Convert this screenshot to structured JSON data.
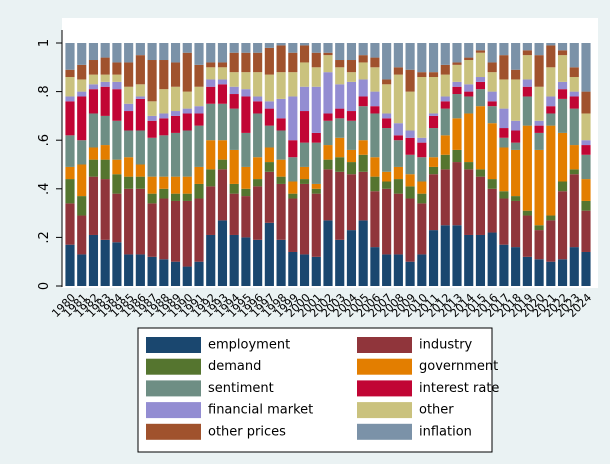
{
  "chart_data": {
    "type": "stacked_bar",
    "categories": [
      "1980",
      "1981",
      "1982",
      "1983",
      "1984",
      "1985",
      "1986",
      "1987",
      "1988",
      "1989",
      "1990",
      "1991",
      "1992",
      "1993",
      "1994",
      "1995",
      "1996",
      "1997",
      "1998",
      "1999",
      "2000",
      "2001",
      "2002",
      "2003",
      "2004",
      "2005",
      "2006",
      "2007",
      "2008",
      "2009",
      "2010",
      "2011",
      "2012",
      "2013",
      "2014",
      "2015",
      "2016",
      "2017",
      "2018",
      "2019",
      "2020",
      "2021",
      "2022",
      "2023",
      "2024"
    ],
    "ylim": [
      0,
      1
    ],
    "yticks": [
      0,
      {
        "value": 0.2,
        "label": ".2"
      },
      {
        "value": 0.4,
        "label": ".4"
      },
      {
        "value": 0.6,
        "label": ".6"
      },
      {
        "value": 0.8,
        "label": ".8"
      },
      1
    ],
    "series": [
      {
        "name": "employment",
        "color": "#1a476f",
        "values": [
          0.17,
          0.13,
          0.21,
          0.19,
          0.18,
          0.13,
          0.13,
          0.12,
          0.11,
          0.1,
          0.08,
          0.1,
          0.21,
          0.27,
          0.21,
          0.2,
          0.19,
          0.26,
          0.19,
          0.14,
          0.13,
          0.12,
          0.27,
          0.19,
          0.23,
          0.27,
          0.16,
          0.13,
          0.13,
          0.1,
          0.13,
          0.23,
          0.25,
          0.25,
          0.21,
          0.21,
          0.22,
          0.17,
          0.16,
          0.12,
          0.11,
          0.1,
          0.11,
          0.16,
          0.14
        ]
      },
      {
        "name": "industry",
        "color": "#90353b",
        "values": [
          0.17,
          0.16,
          0.24,
          0.25,
          0.2,
          0.27,
          0.27,
          0.22,
          0.25,
          0.25,
          0.27,
          0.26,
          0.2,
          0.21,
          0.17,
          0.17,
          0.22,
          0.21,
          0.23,
          0.22,
          0.29,
          0.26,
          0.21,
          0.28,
          0.23,
          0.2,
          0.23,
          0.27,
          0.25,
          0.26,
          0.21,
          0.23,
          0.23,
          0.26,
          0.27,
          0.24,
          0.18,
          0.19,
          0.19,
          0.17,
          0.12,
          0.17,
          0.28,
          0.3,
          0.17
        ]
      },
      {
        "name": "demand",
        "color": "#55752f",
        "values": [
          0.1,
          0.08,
          0.07,
          0.08,
          0.08,
          0.05,
          0.05,
          0.04,
          0.04,
          0.03,
          0.03,
          0.06,
          0.07,
          0.04,
          0.04,
          0.03,
          0.03,
          0.04,
          0.03,
          0.02,
          0.02,
          0.02,
          0.04,
          0.06,
          0.05,
          0.07,
          0.06,
          0.03,
          0.06,
          0.05,
          0.04,
          0.03,
          0.06,
          0.05,
          0.03,
          0.03,
          0.04,
          0.03,
          0.02,
          0.02,
          0.02,
          0.02,
          0.04,
          0.02,
          0.04
        ]
      },
      {
        "name": "government",
        "color": "#e37e00",
        "values": [
          0.05,
          0.13,
          0.05,
          0.06,
          0.06,
          0.08,
          0.05,
          0.07,
          0.05,
          0.07,
          0.07,
          0.07,
          0.12,
          0.08,
          0.14,
          0.09,
          0.09,
          0.06,
          0.07,
          0.05,
          0.05,
          0.02,
          0.06,
          0.08,
          0.05,
          0.06,
          0.08,
          0.04,
          0.05,
          0.05,
          0.05,
          0.04,
          0.08,
          0.13,
          0.2,
          0.26,
          0.23,
          0.18,
          0.19,
          0.35,
          0.31,
          0.37,
          0.2,
          0.1,
          0.09
        ]
      },
      {
        "name": "sentiment",
        "color": "#6e8e84",
        "values": [
          0.13,
          0.1,
          0.14,
          0.12,
          0.16,
          0.11,
          0.14,
          0.16,
          0.17,
          0.18,
          0.19,
          0.17,
          0.15,
          0.15,
          0.17,
          0.14,
          0.18,
          0.09,
          0.12,
          0.1,
          0.1,
          0.17,
          0.1,
          0.08,
          0.12,
          0.14,
          0.18,
          0.18,
          0.11,
          0.08,
          0.1,
          0.12,
          0.11,
          0.1,
          0.07,
          0.07,
          0.07,
          0.04,
          0.03,
          0.12,
          0.07,
          0.05,
          0.14,
          0.15,
          0.1
        ]
      },
      {
        "name": "interest rate",
        "color": "#c10534",
        "values": [
          0.14,
          0.18,
          0.1,
          0.12,
          0.13,
          0.08,
          0.13,
          0.07,
          0.07,
          0.07,
          0.07,
          0.05,
          0.07,
          0.08,
          0.06,
          0.15,
          0.05,
          0.07,
          0.05,
          0.07,
          0.13,
          0.04,
          0.03,
          0.04,
          0.04,
          0.04,
          0.03,
          0.04,
          0.02,
          0.07,
          0.06,
          0.05,
          0.03,
          0.03,
          0.02,
          0.03,
          0.02,
          0.04,
          0.05,
          0.04,
          0.03,
          0.03,
          0.04,
          0.05,
          0.04
        ]
      },
      {
        "name": "financial market",
        "color": "#938dd2",
        "values": [
          0.02,
          0.02,
          0.02,
          0.02,
          0.03,
          0.03,
          0.01,
          0.02,
          0.02,
          0.02,
          0.02,
          0.03,
          0.03,
          0.02,
          0.03,
          0.03,
          0.02,
          0.03,
          0.08,
          0.18,
          0.1,
          0.19,
          0.17,
          0.1,
          0.12,
          0.07,
          0.06,
          0.02,
          0.05,
          0.03,
          0.02,
          0.01,
          0.02,
          0.02,
          0.03,
          0.02,
          0.04,
          0.08,
          0.04,
          0.03,
          0.02,
          0.04,
          0.03,
          0.02,
          0.02
        ]
      },
      {
        "name": "other",
        "color": "#cac27e",
        "values": [
          0.08,
          0.05,
          0.04,
          0.03,
          0.03,
          0.07,
          0.05,
          0.06,
          0.1,
          0.1,
          0.07,
          0.08,
          0.05,
          0.05,
          0.06,
          0.07,
          0.1,
          0.11,
          0.11,
          0.1,
          0.1,
          0.08,
          0.07,
          0.07,
          0.04,
          0.07,
          0.1,
          0.12,
          0.2,
          0.16,
          0.25,
          0.15,
          0.09,
          0.07,
          0.1,
          0.1,
          0.08,
          0.12,
          0.17,
          0.1,
          0.14,
          0.12,
          0.11,
          0.06,
          0.11
        ]
      },
      {
        "name": "other prices",
        "color": "#a0522d",
        "values": [
          0.03,
          0.06,
          0.06,
          0.07,
          0.05,
          0.1,
          0.12,
          0.17,
          0.12,
          0.1,
          0.16,
          0.09,
          0.02,
          0.02,
          0.08,
          0.08,
          0.08,
          0.11,
          0.11,
          0.08,
          0.07,
          0.06,
          0.01,
          0.03,
          0.05,
          0.03,
          0.04,
          0.02,
          0.03,
          0.09,
          0.02,
          0.02,
          0.04,
          0.01,
          0.01,
          0.01,
          0.04,
          0.1,
          0.04,
          0.02,
          0.13,
          0.09,
          0.02,
          0.04,
          0.09
        ]
      },
      {
        "name": "inflation",
        "color": "#7b92a8",
        "values": [
          0.11,
          0.09,
          0.07,
          0.06,
          0.08,
          0.08,
          0.05,
          0.07,
          0.07,
          0.08,
          0.04,
          0.09,
          0.08,
          0.08,
          0.04,
          0.04,
          0.04,
          0.02,
          0.01,
          0.04,
          0.01,
          0.04,
          0.04,
          0.07,
          0.07,
          0.05,
          0.06,
          0.15,
          0.1,
          0.11,
          0.12,
          0.12,
          0.09,
          0.08,
          0.06,
          0.03,
          0.08,
          0.05,
          0.11,
          0.03,
          0.05,
          0.01,
          0.03,
          0.1,
          0.2
        ]
      }
    ]
  }
}
